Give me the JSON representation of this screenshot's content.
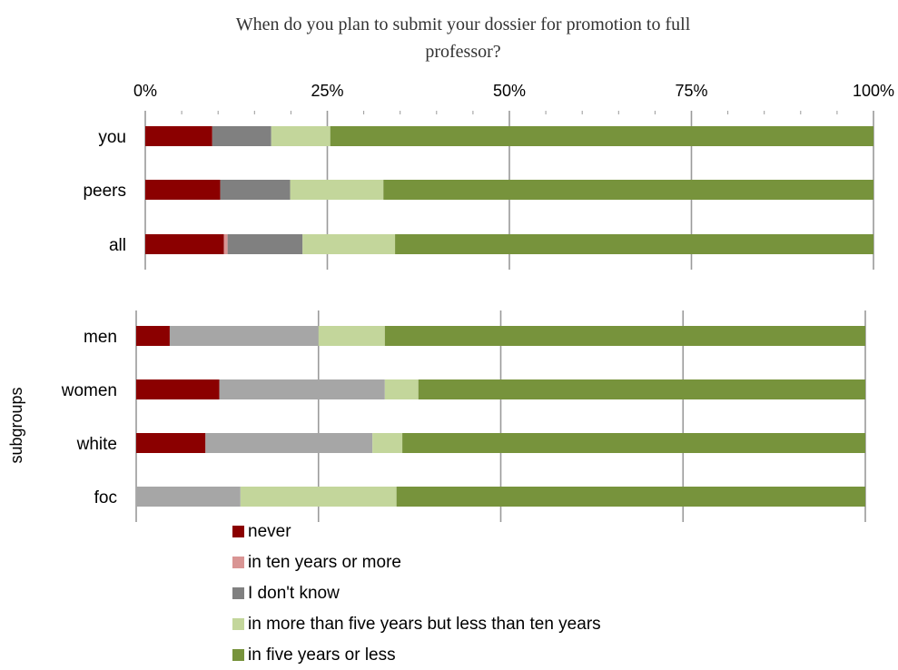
{
  "chart_data": {
    "type": "bar",
    "stacked": true,
    "orientation": "horizontal",
    "title": "When do you plan to submit your dossier for promotion to full professor?",
    "x_ticks": [
      "0%",
      "25%",
      "50%",
      "75%",
      "100%"
    ],
    "xlim": [
      0,
      100
    ],
    "legend": {
      "placement": "bottom",
      "entries": [
        {
          "name": "never",
          "color": "#8B0000"
        },
        {
          "name": "in ten years or more",
          "color": "#D99594"
        },
        {
          "name": "I don't know",
          "color": "#808080"
        },
        {
          "name": "in more than five years but less than ten years",
          "color": "#C3D69B"
        },
        {
          "name": "in five years or less",
          "color": "#77933C"
        }
      ]
    },
    "panels": [
      {
        "ylabel": "",
        "categories": [
          "you",
          "peers",
          "all"
        ],
        "series": [
          {
            "name": "never",
            "color": "#8B0000",
            "values": [
              9.2,
              10.3,
              10.8
            ]
          },
          {
            "name": "in ten years or more",
            "color": "#D99594",
            "values": [
              0,
              0,
              0.5
            ]
          },
          {
            "name": "I don't know",
            "color": "#808080",
            "values": [
              8.1,
              9.6,
              10.3
            ]
          },
          {
            "name": "in more than five years but less than ten years",
            "color": "#C3D69B",
            "values": [
              8.1,
              12.8,
              12.7
            ]
          },
          {
            "name": "in five years or less",
            "color": "#77933C",
            "values": [
              74.6,
              67.3,
              65.7
            ]
          }
        ]
      },
      {
        "ylabel": "subgroups",
        "categories": [
          "men",
          "women",
          "white",
          "foc"
        ],
        "series": [
          {
            "name": "never",
            "color": "#8B0000",
            "values": [
              4.6,
              11.4,
              9.5,
              0
            ]
          },
          {
            "name": "in ten years or more",
            "color": "#D99594",
            "values": [
              0,
              0,
              0,
              0
            ]
          },
          {
            "name": "I don't know",
            "color": "#A6A6A6",
            "values": [
              20.4,
              22.7,
              22.9,
              14.3
            ]
          },
          {
            "name": "in more than five years but less than ten years",
            "color": "#C3D69B",
            "values": [
              9.1,
              4.6,
              4.1,
              21.4
            ]
          },
          {
            "name": "in five years or less",
            "color": "#77933C",
            "values": [
              65.9,
              61.3,
              63.5,
              64.3
            ]
          }
        ]
      }
    ]
  }
}
